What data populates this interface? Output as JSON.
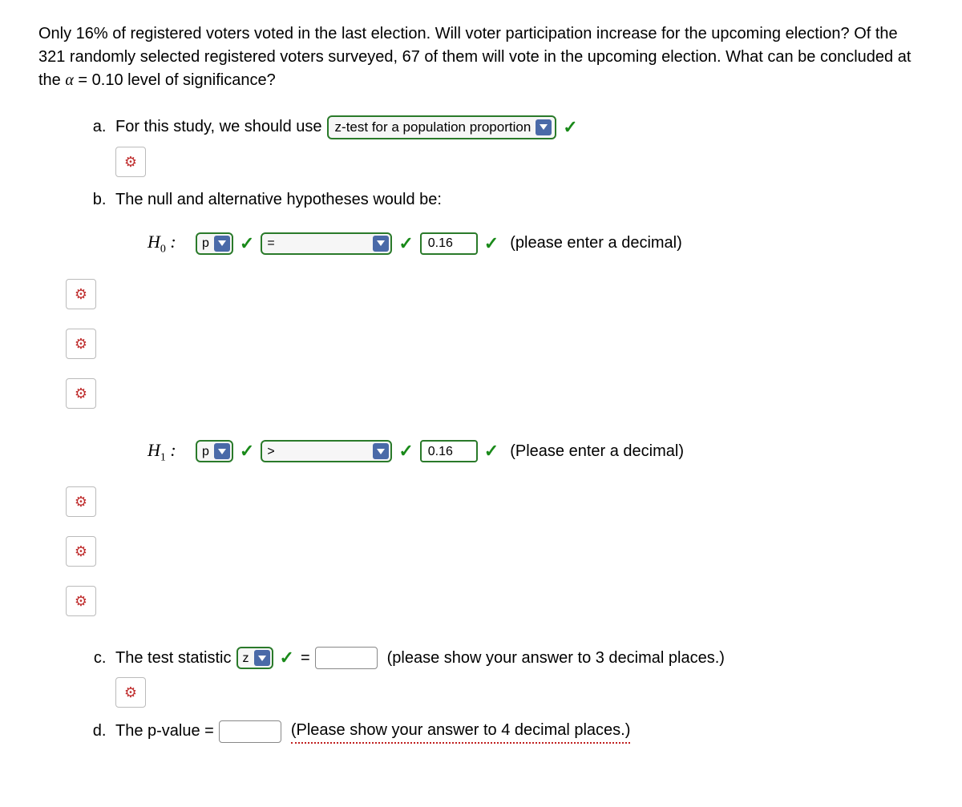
{
  "problem": {
    "text_before_alpha": "Only 16% of registered voters voted in the last election. Will voter participation increase for the upcoming election? Of the 321 randomly selected registered voters surveyed, 67 of them will vote in the upcoming election. What can be concluded at the ",
    "alpha_symbol": "α",
    "text_after_alpha": " = 0.10 level of significance?"
  },
  "parts": {
    "a": {
      "text": "For this study, we should use",
      "select_value": "z-test for a population proportion"
    },
    "b": {
      "text": "The null and alternative hypotheses would be:",
      "h0": {
        "label": "H",
        "sub": "0",
        "param": "p",
        "op": "=",
        "value": "0.16",
        "hint": "(please enter a decimal)"
      },
      "h1": {
        "label": "H",
        "sub": "1",
        "param": "p",
        "op": ">",
        "value": "0.16",
        "hint": "(Please enter a decimal)"
      }
    },
    "c": {
      "text": "The test statistic",
      "stat": "z",
      "equals": "=",
      "hint": "(please show your answer to 3 decimal places.)"
    },
    "d": {
      "text": "The p-value =",
      "hint": "(Please show your answer to 4 decimal places.)"
    }
  },
  "icons": {
    "gear": "⚙",
    "check": "✓"
  },
  "colors": {
    "correct_border": "#2a7a2a",
    "check_color": "#1a8a1a",
    "caret_bg": "#4a6aa8",
    "gear_color": "#c03030"
  }
}
